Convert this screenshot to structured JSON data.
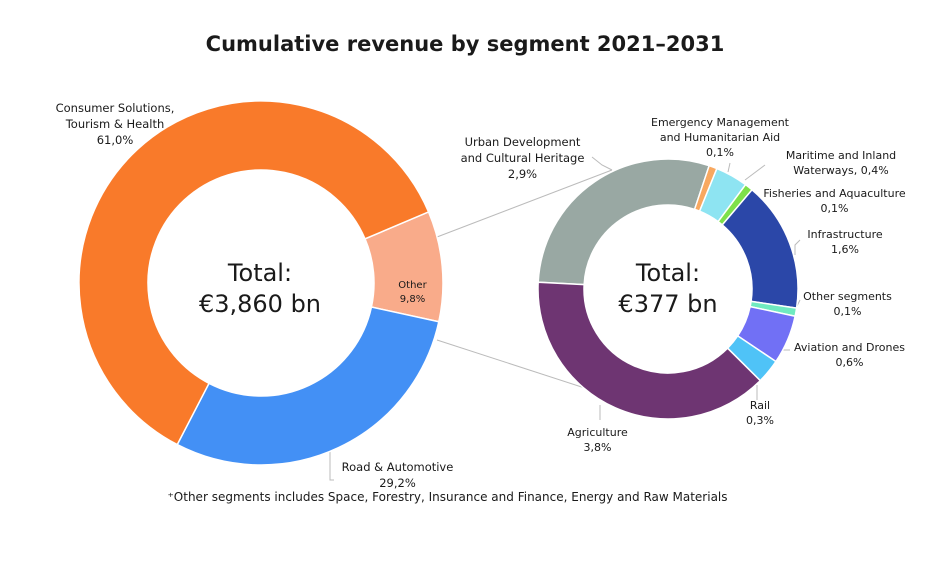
{
  "chart_data": [
    {
      "type": "pie",
      "title": "Cumulative revenue by segment 2021–2031",
      "center_label": [
        "Total:",
        "€3,860 bn"
      ],
      "slices": [
        {
          "label": "Other",
          "value": 9.8,
          "display": "9,8%",
          "color": "#F9AB8A"
        },
        {
          "label": "Road & Automotive",
          "value": 29.2,
          "display": "29,2%",
          "color": "#4390F5"
        },
        {
          "label": "Consumer Solutions, Tourism & Health",
          "value": 61.0,
          "display": "61,0%",
          "color": "#F97A2A"
        }
      ]
    },
    {
      "type": "pie",
      "center_label": [
        "Total:",
        "€377 bn"
      ],
      "slices": [
        {
          "label": "Urban Development and Cultural Heritage",
          "value": 2.9,
          "display": "2,9%",
          "color": "#99A8A3"
        },
        {
          "label": "Emergency Management and Humanitarian Aid",
          "value": 0.1,
          "display": "0,1%",
          "color": "#F8A860"
        },
        {
          "label": "Maritime and Inland Waterways",
          "value": 0.4,
          "display": "0,4%",
          "color": "#8EE4F2"
        },
        {
          "label": "Fisheries and Aquaculture",
          "value": 0.1,
          "display": "0,1%",
          "color": "#7EE04A"
        },
        {
          "label": "Infrastructure",
          "value": 1.6,
          "display": "1,6%",
          "color": "#2B47A8"
        },
        {
          "label": "Other segments",
          "value": 0.1,
          "display": "0,1%",
          "color": "#70EAC0"
        },
        {
          "label": "Aviation and Drones",
          "value": 0.6,
          "display": "0,6%",
          "color": "#7170F5"
        },
        {
          "label": "Rail",
          "value": 0.3,
          "display": "0,3%",
          "color": "#4FC3F7"
        },
        {
          "label": "Agriculture",
          "value": 3.8,
          "display": "3,8%",
          "color": "#6E3572"
        }
      ]
    }
  ],
  "left_labels": {
    "consumer": [
      "Consumer Solutions,",
      "Tourism & Health",
      "61,0%"
    ],
    "road": [
      "Road & Automotive",
      "29,2%"
    ],
    "other": [
      "Other",
      "9,8%"
    ]
  },
  "right_labels": {
    "urban": [
      "Urban Development",
      "and Cultural Heritage",
      "2,9%"
    ],
    "emergency": [
      "Emergency Management",
      "and Humanitarian Aid",
      "0,1%"
    ],
    "maritime": [
      "Maritime and Inland",
      "Waterways, 0,4%"
    ],
    "fisheries": [
      "Fisheries and Aquaculture",
      "0,1%"
    ],
    "infra": [
      "Infrastructure",
      "1,6%"
    ],
    "othseg": [
      "Other segments",
      "0,1%"
    ],
    "aviation": [
      "Aviation and Drones",
      "0,6%"
    ],
    "rail": [
      "Rail",
      "0,3%"
    ],
    "agri": [
      "Agriculture",
      "3,8%"
    ]
  },
  "footnote": "⁺Other segments includes Space, Forestry, Insurance and Finance, Energy and Raw Materials"
}
